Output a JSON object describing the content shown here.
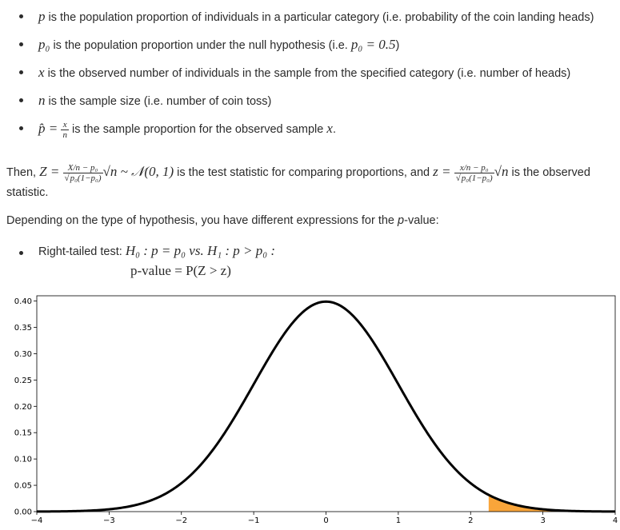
{
  "bullets": [
    {
      "sym": "p",
      "text": " is the population proportion of individuals in a particular category (i.e. probability of the coin landing heads)"
    },
    {
      "sym": "p₀",
      "text_a": " is the population proportion under the null hypothesis (i.e. ",
      "expr": "p₀ = 0.5",
      "text_b": ")"
    },
    {
      "sym": "x",
      "text": " is the observed number of individuals in the sample from the specified category  (i.e. number of heads)"
    },
    {
      "sym": "n",
      "text": " is the sample size (i.e. number of coin toss)"
    },
    {
      "sym": "p̂ = ",
      "frac_num": "x",
      "frac_den": "n",
      "text": " is the sample proportion for the observed sample ",
      "sym_end": "x",
      "end": "."
    }
  ],
  "then_para": {
    "lead": "Then, ",
    "Z_lhs": "Z = ",
    "frac1_num": "X/n − p₀",
    "frac1_den": "p₀(1−p₀)",
    "mid_expr": "√n ~ 𝒩(0, 1)",
    "text_mid": " is the test statistic for comparing proportions, and ",
    "z_lhs": "z = ",
    "frac2_num": "x/n − p₀",
    "frac2_den": "p₀(1−p₀)",
    "end_expr": "√n",
    "text_end": " is the observed statistic."
  },
  "depending_para": {
    "text_a": "Depending on the type of hypothesis, you have different expressions for the ",
    "p_italic": "p",
    "text_b": "-value:"
  },
  "right_tailed": {
    "label": "Right-tailed test: ",
    "expr": "H₀ : p = p₀ vs. H₁ : p > p₀ :",
    "pvalue": "p-value = P(Z > z)"
  },
  "chart_data": {
    "type": "area",
    "description_curve": "standard normal density",
    "x_range": [
      -4,
      4
    ],
    "y_range": [
      0,
      0.41
    ],
    "x_ticks": [
      -4,
      -3,
      -2,
      -1,
      0,
      1,
      2,
      3,
      4
    ],
    "x_tick_labels": [
      "−4",
      "−3",
      "−2",
      "−1",
      "0",
      "1",
      "2",
      "3",
      "4"
    ],
    "y_ticks": [
      0,
      0.05,
      0.1,
      0.15,
      0.2,
      0.25,
      0.3,
      0.35,
      0.4
    ],
    "y_tick_labels": [
      "0.00",
      "0.05",
      "0.10",
      "0.15",
      "0.20",
      "0.25",
      "0.30",
      "0.35",
      "0.40"
    ],
    "shaded_from": 2.25,
    "shaded_to": 4,
    "curve_color": "#000000",
    "shade_color": "#f9a53a",
    "grid": false
  }
}
